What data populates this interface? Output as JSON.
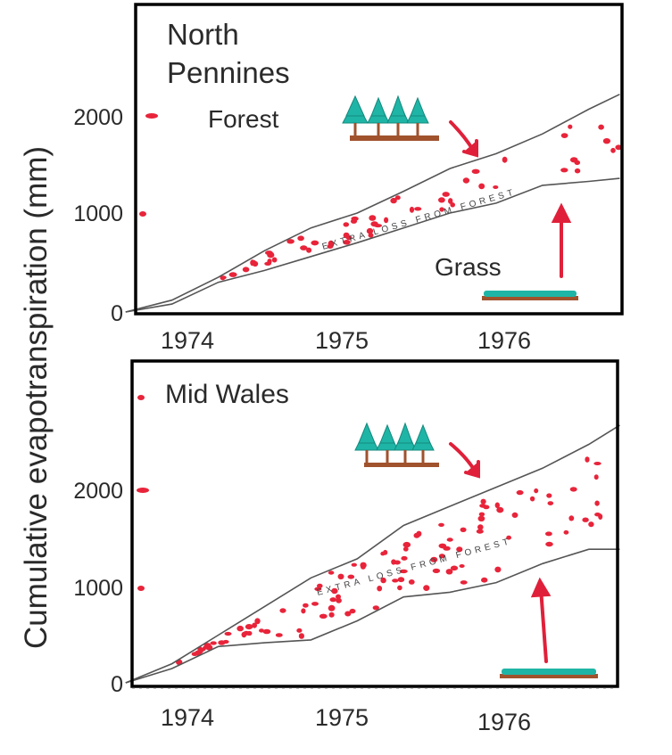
{
  "ylabel": "Cumulative evapotranspiration (mm)",
  "colors": {
    "dots": "#e8243a",
    "outline": "#555555",
    "trees": "#1fb5a6",
    "trunks": "#a0522d",
    "frame": "#000000",
    "arrow": "#e0203a"
  },
  "icons": [
    "forest-icon",
    "grass-icon",
    "red-arrow-icon"
  ],
  "chart_data": [
    {
      "type": "area",
      "title": "North Pennines",
      "x_tick_labels": [
        "1974",
        "1975",
        "1976"
      ],
      "y_tick_labels": [
        "0",
        "1000",
        "2000"
      ],
      "ylim": [
        0,
        2000
      ],
      "series": [
        {
          "name": "Forest",
          "x": [
            1973.6,
            1973.9,
            1974.2,
            1974.5,
            1974.8,
            1975.1,
            1975.4,
            1975.7,
            1976.0,
            1976.3,
            1976.6,
            1976.8
          ],
          "y": [
            0,
            120,
            350,
            620,
            850,
            1000,
            1220,
            1450,
            1600,
            1800,
            2050,
            2200
          ]
        },
        {
          "name": "Grass",
          "x": [
            1973.6,
            1973.9,
            1974.2,
            1974.5,
            1974.8,
            1975.1,
            1975.4,
            1975.7,
            1976.0,
            1976.3,
            1976.6,
            1976.8
          ],
          "y": [
            0,
            80,
            300,
            420,
            560,
            700,
            850,
            1000,
            1100,
            1280,
            1320,
            1350
          ]
        }
      ],
      "annotation": "EXTRA LOSS FROM FOREST"
    },
    {
      "type": "area",
      "title": "Mid Wales",
      "x_tick_labels": [
        "1974",
        "1975",
        "1976"
      ],
      "y_tick_labels": [
        "0",
        "1000",
        "2000"
      ],
      "ylim": [
        0,
        2000
      ],
      "series": [
        {
          "x": [
            1973.6,
            1973.9,
            1974.2,
            1974.5,
            1974.8,
            1975.1,
            1975.4,
            1975.7,
            1976.0,
            1976.3,
            1976.6,
            1976.8
          ],
          "y": [
            0,
            200,
            500,
            800,
            1100,
            1300,
            1650,
            1850,
            2050,
            2250,
            2500,
            2700
          ]
        },
        {
          "x": [
            1973.6,
            1973.9,
            1974.2,
            1974.5,
            1974.8,
            1975.1,
            1975.4,
            1975.7,
            1976.0,
            1976.3,
            1976.6,
            1976.8
          ],
          "y": [
            0,
            150,
            380,
            420,
            450,
            650,
            900,
            950,
            1050,
            1250,
            1400,
            1400
          ]
        }
      ],
      "annotation": "EXTRA LOSS FROM FOREST"
    }
  ]
}
